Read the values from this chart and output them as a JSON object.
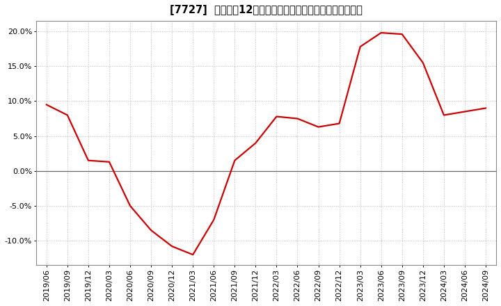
{
  "title": "[7727]  売上高の12か月移動合計の対前年同期増減率の推移",
  "line_color": "#cc0000",
  "background_color": "#ffffff",
  "plot_bg_color": "#ffffff",
  "grid_color": "#bbbbbb",
  "ylim": [
    -0.135,
    0.215
  ],
  "yticks": [
    -0.1,
    -0.05,
    0.0,
    0.05,
    0.1,
    0.15,
    0.2
  ],
  "dates": [
    "2019/06",
    "2019/09",
    "2019/12",
    "2020/03",
    "2020/06",
    "2020/09",
    "2020/12",
    "2021/03",
    "2021/06",
    "2021/09",
    "2021/12",
    "2022/03",
    "2022/06",
    "2022/09",
    "2022/12",
    "2023/03",
    "2023/06",
    "2023/09",
    "2023/12",
    "2024/03",
    "2024/06",
    "2024/09"
  ],
  "values": [
    0.095,
    0.08,
    0.015,
    0.013,
    -0.05,
    -0.085,
    -0.108,
    -0.12,
    -0.07,
    0.015,
    0.04,
    0.078,
    0.075,
    0.063,
    0.068,
    0.178,
    0.198,
    0.196,
    0.155,
    0.08,
    0.085,
    0.09
  ],
  "title_fontsize": 10.5,
  "tick_fontsize": 8,
  "linewidth": 1.6
}
